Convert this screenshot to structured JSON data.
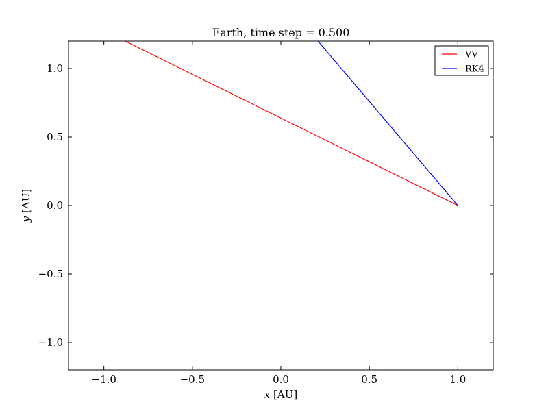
{
  "chart_data": {
    "type": "line",
    "title": "Earth, time step = 0.500",
    "xlabel_var": "x",
    "xlabel_unit": "[AU]",
    "ylabel_var": "y",
    "ylabel_unit": "[AU]",
    "xlim": [
      -1.2,
      1.2
    ],
    "ylim": [
      -1.2,
      1.2
    ],
    "xticks": [
      -1.0,
      -0.5,
      0.0,
      0.5,
      1.0
    ],
    "yticks": [
      -1.0,
      -0.5,
      0.0,
      0.5,
      1.0
    ],
    "xtick_labels": [
      "−1.0",
      "−0.5",
      "0.0",
      "0.5",
      "1.0"
    ],
    "ytick_labels": [
      "−1.0",
      "−0.5",
      "0.0",
      "0.5",
      "1.0"
    ],
    "grid": false,
    "legend_position": "top-right",
    "series": [
      {
        "name": "VV",
        "color": "#ff0000",
        "x": [
          1.0,
          -0.88
        ],
        "y": [
          0.0,
          1.2
        ]
      },
      {
        "name": "RK4",
        "color": "#0000ff",
        "x": [
          1.0,
          0.21
        ],
        "y": [
          0.0,
          1.2
        ]
      }
    ]
  }
}
